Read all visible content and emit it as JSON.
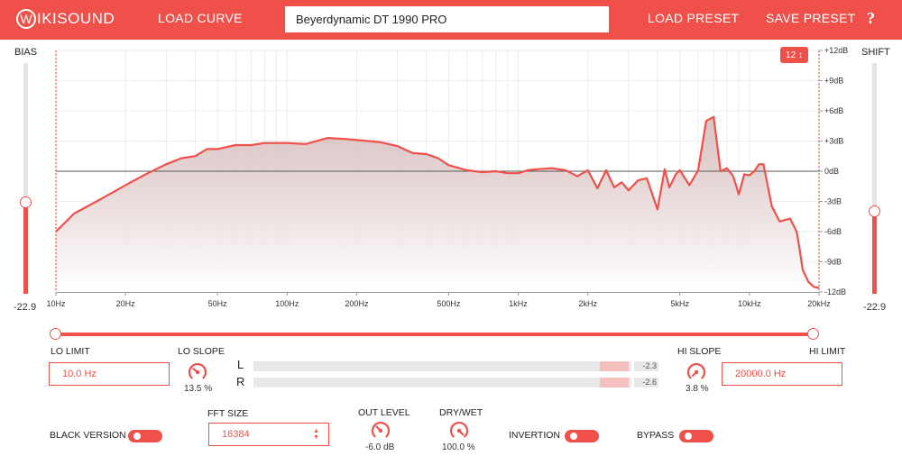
{
  "header": {
    "logo_mark": "W",
    "logo_text": "IKISOUND",
    "load_curve": "LOAD CURVE",
    "preset_name": "Beyerdynamic DT 1990 PRO",
    "load_preset": "LOAD PRESET",
    "save_preset": "SAVE PRESET",
    "help": "?"
  },
  "bias": {
    "label": "BIAS",
    "value": "-22.9",
    "level": 0.4
  },
  "shift": {
    "label": "SHIFT",
    "value": "-22.9",
    "level": 0.36
  },
  "fft_resolution_display": "12 ↕",
  "colors": {
    "accent": "#f0504a",
    "fill_top": "#d4b8b8",
    "fill_bottom": "#ffffff"
  },
  "chart_data": {
    "type": "area",
    "x_scale": "log",
    "xlim": [
      10,
      20000
    ],
    "ylim": [
      -12,
      12
    ],
    "x_ticks": [
      {
        "v": 10,
        "label": "10Hz"
      },
      {
        "v": 20,
        "label": "20Hz"
      },
      {
        "v": 50,
        "label": "50Hz"
      },
      {
        "v": 100,
        "label": "100Hz"
      },
      {
        "v": 200,
        "label": "200Hz"
      },
      {
        "v": 500,
        "label": "500Hz"
      },
      {
        "v": 1000,
        "label": "1kHz"
      },
      {
        "v": 2000,
        "label": "2kHz"
      },
      {
        "v": 5000,
        "label": "5kHz"
      },
      {
        "v": 10000,
        "label": "10kHz"
      },
      {
        "v": 20000,
        "label": "20kHz"
      }
    ],
    "y_ticks": [
      {
        "v": 12,
        "label": "+12dB"
      },
      {
        "v": 9,
        "label": "+9dB"
      },
      {
        "v": 6,
        "label": "+6dB"
      },
      {
        "v": 3,
        "label": "+3dB"
      },
      {
        "v": 0,
        "label": "0dB"
      },
      {
        "v": -3,
        "label": "-3dB"
      },
      {
        "v": -6,
        "label": "-6dB"
      },
      {
        "v": -9,
        "label": "-9dB"
      },
      {
        "v": -12,
        "label": "-12dB"
      }
    ],
    "grid": true,
    "x": [
      10,
      12,
      15,
      17,
      20,
      24,
      30,
      35,
      40,
      45,
      50,
      60,
      70,
      80,
      100,
      120,
      150,
      180,
      200,
      250,
      300,
      350,
      400,
      450,
      500,
      600,
      700,
      800,
      900,
      1000,
      1100,
      1200,
      1400,
      1600,
      1800,
      2000,
      2200,
      2400,
      2600,
      2800,
      3000,
      3300,
      3600,
      4000,
      4300,
      4500,
      4600,
      4800,
      5000,
      5500,
      6000,
      6500,
      7000,
      7500,
      8000,
      8500,
      9000,
      9500,
      10000,
      10500,
      11000,
      11500,
      12500,
      13500,
      15000,
      16000,
      16500,
      17000,
      18000,
      19000,
      20000
    ],
    "y": [
      -6.0,
      -4.2,
      -3.0,
      -2.3,
      -1.4,
      -0.4,
      0.7,
      1.3,
      1.5,
      2.2,
      2.2,
      2.6,
      2.6,
      2.8,
      2.8,
      2.7,
      3.3,
      3.2,
      3.1,
      2.9,
      2.5,
      1.8,
      1.7,
      1.3,
      0.6,
      0.1,
      -0.1,
      0.0,
      -0.2,
      -0.2,
      0.1,
      0.2,
      0.3,
      0.1,
      -0.5,
      0.1,
      -1.7,
      0.1,
      -1.6,
      -1.1,
      -1.9,
      -0.9,
      -0.7,
      -3.8,
      0.2,
      -1.6,
      -1.2,
      -0.3,
      0.1,
      -1.4,
      0.1,
      5.0,
      5.4,
      0.0,
      0.3,
      -0.5,
      -2.3,
      -0.3,
      -0.4,
      0.0,
      0.7,
      0.7,
      -3.5,
      -5.0,
      -4.7,
      -6.0,
      -7.8,
      -9.8,
      -11.0,
      -11.5,
      -11.6
    ]
  },
  "lo_limit": {
    "label": "LO LIMIT",
    "value": "10.0 Hz"
  },
  "lo_slope": {
    "label": "LO SLOPE",
    "value": "13.5 %"
  },
  "hi_slope": {
    "label": "HI SLOPE",
    "value": "3.8 %"
  },
  "hi_limit": {
    "label": "HI LIMIT",
    "value": "20000.0 Hz"
  },
  "meters": {
    "left": {
      "label": "L",
      "value": "-2.3"
    },
    "right": {
      "label": "R",
      "value": "-2.6"
    }
  },
  "black_version": {
    "label": "BLACK VERSION"
  },
  "fft_size": {
    "label": "FFT SIZE",
    "value": "16384"
  },
  "out_level": {
    "label": "OUT LEVEL",
    "value": "-6.0 dB"
  },
  "dry_wet": {
    "label": "DRY/WET",
    "value": "100.0 %"
  },
  "invertion": {
    "label": "INVERTION"
  },
  "bypass": {
    "label": "BYPASS"
  }
}
